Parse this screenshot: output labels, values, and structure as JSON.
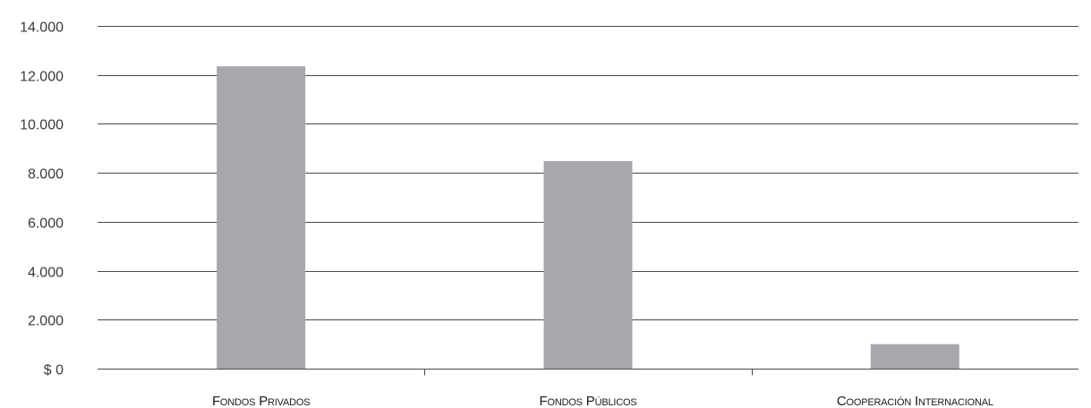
{
  "chart_data": {
    "type": "bar",
    "categories": [
      "Fondos Privados",
      "Fondos Públicos",
      "Cooperación Internacional"
    ],
    "values": [
      12350,
      8480,
      1000
    ],
    "ylim": [
      0,
      14000
    ],
    "yticks": [
      0,
      2000,
      4000,
      6000,
      8000,
      10000,
      12000,
      14000
    ],
    "ytick_labels": [
      "$ 0",
      "2.000",
      "4.000",
      "6.000",
      "8.000",
      "10.000",
      "12.000",
      "14.000"
    ],
    "grid": true,
    "legend": "none",
    "colors": {
      "bar": "#a7a8ab",
      "grid": "#4a4a4a",
      "text": "#3a3a3a"
    }
  }
}
